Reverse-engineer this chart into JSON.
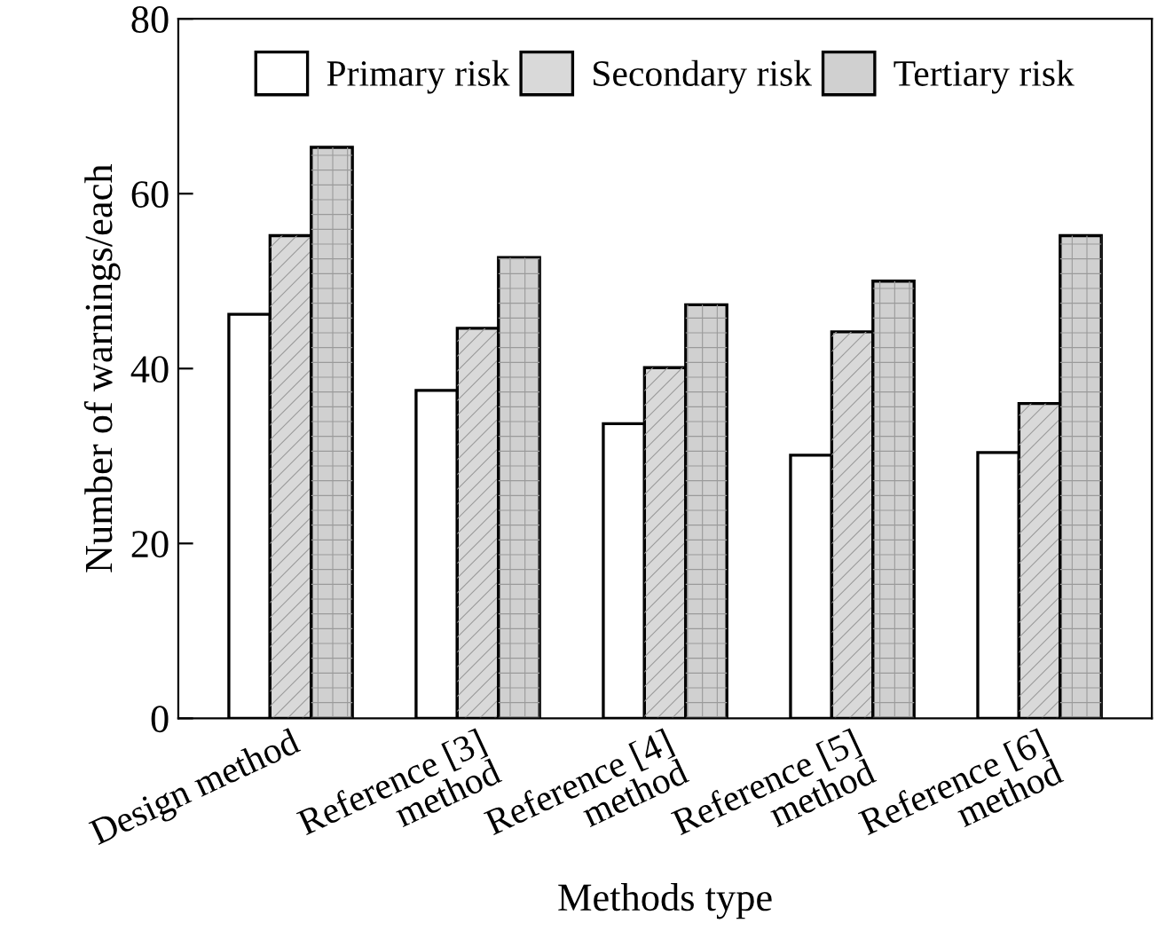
{
  "chart_data": {
    "type": "bar",
    "xlabel": "Methods type",
    "ylabel": "Number of warnings/each",
    "categories": [
      "Design method",
      "Reference [3]\nmethod",
      "Reference [4]\nmethod",
      "Reference [5]\nmethod",
      "Reference [6]\nmethod"
    ],
    "series": [
      {
        "name": "Primary risk",
        "color": "#ffffff",
        "values": [
          46.2,
          37.5,
          33.7,
          30.1,
          30.4
        ]
      },
      {
        "name": "Secondary risk",
        "color": "#d9d9d9",
        "values": [
          55.2,
          44.6,
          40.1,
          44.2,
          36.0
        ]
      },
      {
        "name": "Tertiary risk",
        "color": "#d0d0d0",
        "values": [
          65.3,
          52.7,
          47.3,
          50.0,
          55.2
        ]
      }
    ],
    "ylim": [
      0,
      80
    ],
    "yticks": [
      0,
      20,
      40,
      60,
      80
    ],
    "legend": "top",
    "grid": false
  }
}
